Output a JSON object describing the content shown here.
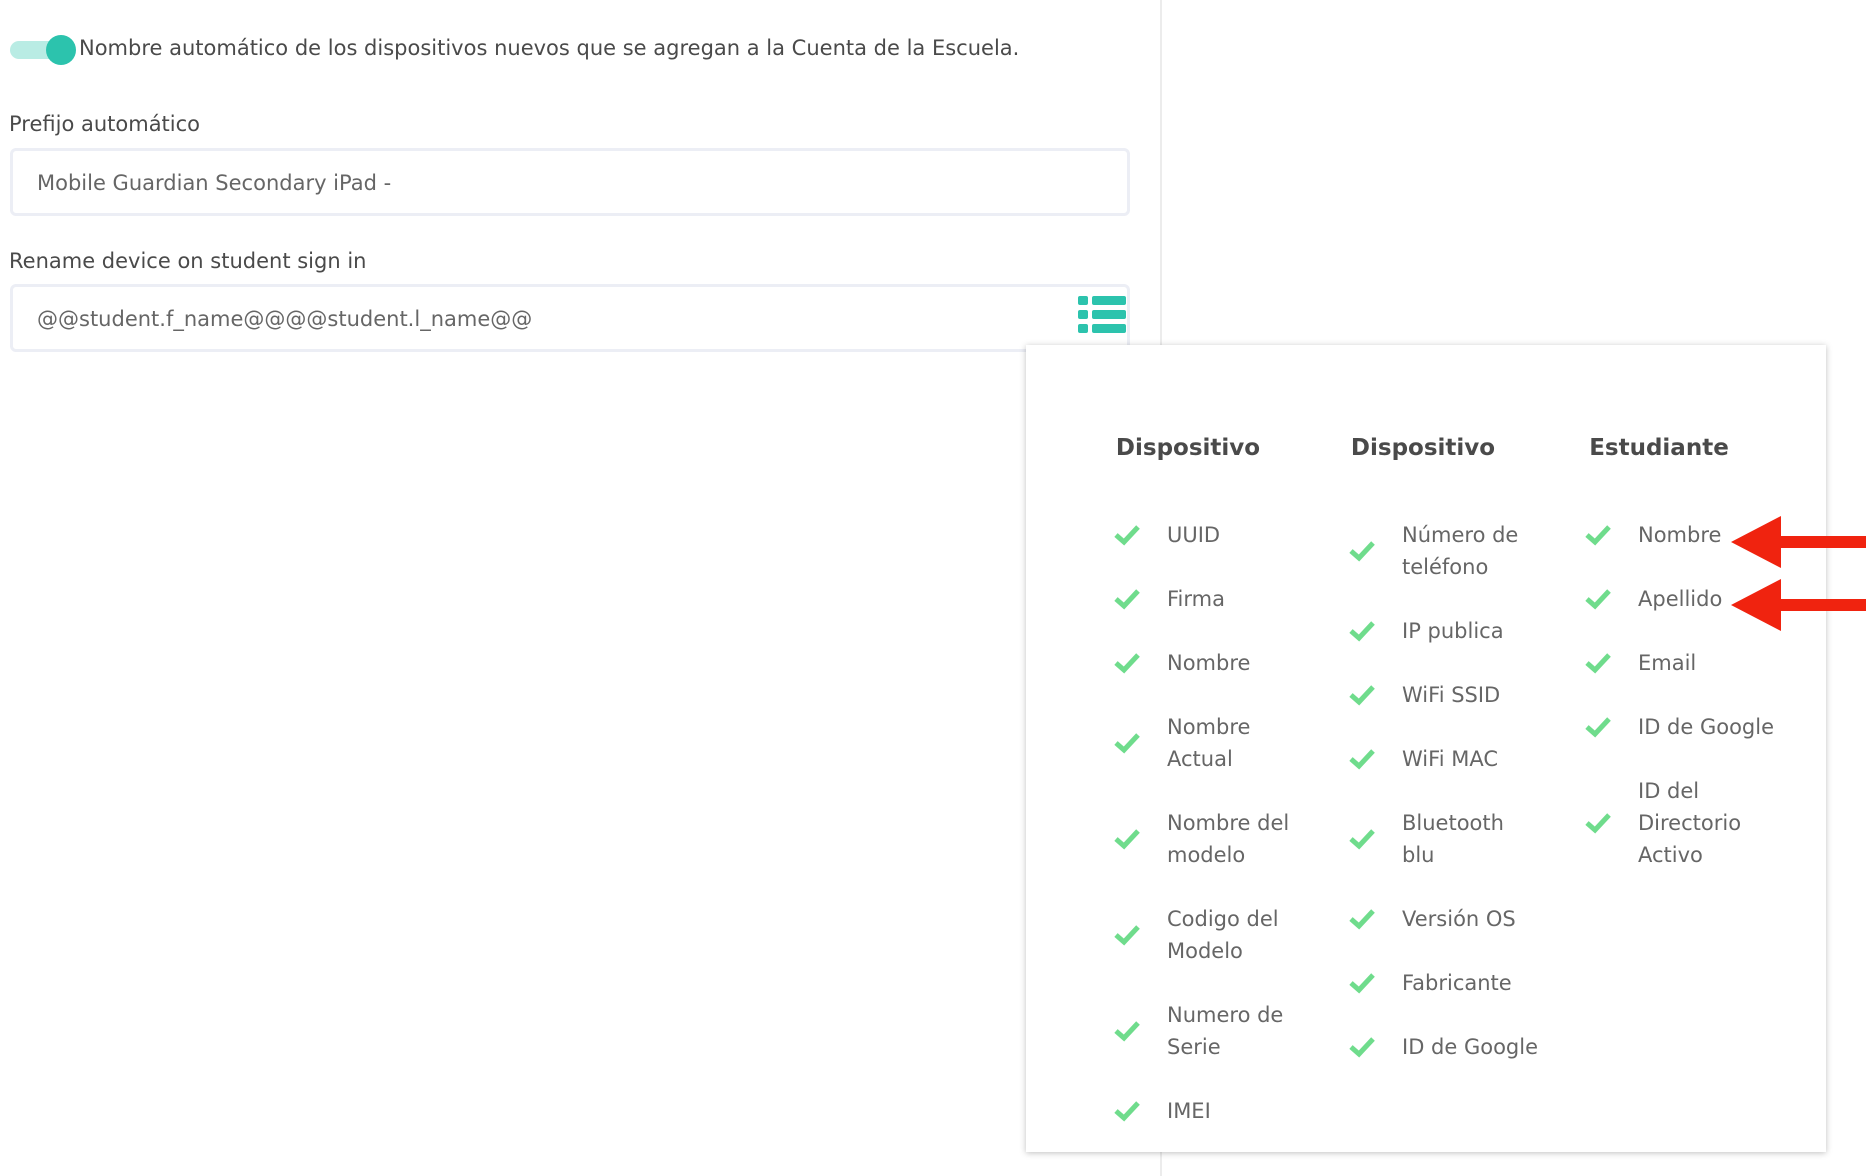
{
  "settings": {
    "toggle_label": "Nombre automático de los dispositivos nuevos que se agregan a la Cuenta de la Escuela.",
    "fields": [
      {
        "label": "Prefijo automático",
        "value": "Mobile Guardian Secondary iPad -"
      },
      {
        "label": "Rename device on student sign in",
        "value": "@@student.f_name@@@@student.l_name@@"
      }
    ]
  },
  "picker": {
    "columns": [
      {
        "title": "Dispositivo",
        "items": [
          "UUID",
          "Firma",
          "Nombre",
          "Nombre Actual",
          "Nombre del modelo",
          "Codigo del Modelo",
          "Numero de Serie",
          "IMEI"
        ]
      },
      {
        "title": "Dispositivo",
        "items": [
          "Número de teléfono",
          "IP publica",
          "WiFi SSID",
          "WiFi MAC",
          "Bluetooth blu",
          "Versión OS",
          "Fabricante",
          "ID de Google"
        ]
      },
      {
        "title": "Estudiante",
        "items": [
          "Nombre",
          "Apellido",
          "Email",
          "ID de Google",
          "ID del Directorio Activo"
        ]
      }
    ]
  }
}
